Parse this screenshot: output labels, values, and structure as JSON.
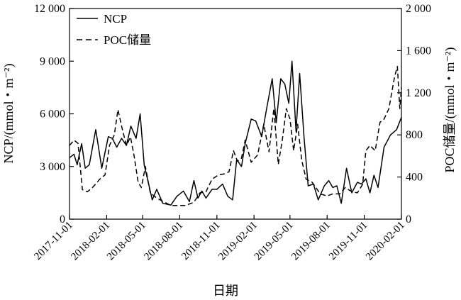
{
  "chart_data": {
    "type": "line",
    "xlabel": "日期",
    "ylabel_left": "NCP/(mmol・m⁻²)",
    "ylabel_right": "POC储量/(mmol・m⁻²)",
    "ylim_left": [
      0,
      12000
    ],
    "ylim_right": [
      0,
      2000
    ],
    "yticks_left": [
      "0",
      "3 000",
      "6 000",
      "9 000",
      "12 000"
    ],
    "yticks_right": [
      "0",
      "400",
      "800",
      "1 200",
      "1 600",
      "2 000"
    ],
    "xticks": [
      "2017-11-01",
      "2018-02-01",
      "2018-05-01",
      "2018-08-01",
      "2018-11-01",
      "2019-02-01",
      "2019-05-01",
      "2019-08-01",
      "2019-11-01",
      "2020-02-01"
    ],
    "grid": false,
    "legend_position": "top-left",
    "series": [
      {
        "name": "NCP",
        "axis": "left",
        "style": "solid",
        "x": [
          "2017-11-01",
          "2017-11-12",
          "2017-11-20",
          "2017-12-01",
          "2017-12-10",
          "2017-12-20",
          "2018-01-05",
          "2018-01-20",
          "2018-02-05",
          "2018-02-15",
          "2018-02-26",
          "2018-03-10",
          "2018-03-22",
          "2018-04-02",
          "2018-04-15",
          "2018-04-25",
          "2018-05-05",
          "2018-05-15",
          "2018-05-25",
          "2018-06-05",
          "2018-06-20",
          "2018-07-10",
          "2018-07-25",
          "2018-08-10",
          "2018-08-25",
          "2018-09-05",
          "2018-09-15",
          "2018-09-25",
          "2018-10-05",
          "2018-10-20",
          "2018-11-01",
          "2018-11-15",
          "2018-11-28",
          "2018-12-10",
          "2018-12-20",
          "2019-01-01",
          "2019-01-10",
          "2019-01-25",
          "2019-02-05",
          "2019-02-20",
          "2019-03-05",
          "2019-03-18",
          "2019-03-28",
          "2019-04-08",
          "2019-04-18",
          "2019-04-28",
          "2019-05-06",
          "2019-05-16",
          "2019-05-25",
          "2019-06-05",
          "2019-06-15",
          "2019-06-28",
          "2019-07-10",
          "2019-07-25",
          "2019-08-05",
          "2019-08-15",
          "2019-08-25",
          "2019-09-05",
          "2019-09-18",
          "2019-10-01",
          "2019-10-15",
          "2019-10-25",
          "2019-11-05",
          "2019-11-15",
          "2019-11-25",
          "2019-12-05",
          "2019-12-20",
          "2020-01-05",
          "2020-01-20",
          "2020-02-01"
        ],
        "values": [
          3500,
          3700,
          3100,
          4300,
          2900,
          3100,
          5100,
          2900,
          4700,
          4600,
          4100,
          4600,
          4200,
          5300,
          4600,
          6000,
          3100,
          2100,
          1100,
          1700,
          900,
          800,
          1300,
          1600,
          1000,
          2200,
          1200,
          1600,
          1200,
          1700,
          1700,
          2000,
          1300,
          1100,
          3400,
          3000,
          4300,
          5700,
          5600,
          4700,
          6400,
          8000,
          5500,
          8000,
          7700,
          6600,
          9000,
          5000,
          8300,
          4600,
          1900,
          2000,
          1100,
          1900,
          2200,
          1800,
          1900,
          900,
          2900,
          1500,
          2100,
          2000,
          2300,
          1500,
          2500,
          1800,
          4100,
          4800,
          5100,
          5800
        ]
      },
      {
        "name": "POC储量",
        "axis": "right",
        "style": "dashed",
        "x": [
          "2017-11-01",
          "2017-11-12",
          "2017-11-22",
          "2017-12-03",
          "2017-12-15",
          "2017-12-28",
          "2018-01-15",
          "2018-01-28",
          "2018-02-08",
          "2018-02-20",
          "2018-03-01",
          "2018-03-12",
          "2018-03-22",
          "2018-04-01",
          "2018-04-10",
          "2018-04-20",
          "2018-04-28",
          "2018-05-08",
          "2018-05-20",
          "2018-06-05",
          "2018-06-20",
          "2018-07-10",
          "2018-07-25",
          "2018-08-15",
          "2018-09-05",
          "2018-09-20",
          "2018-10-05",
          "2018-10-20",
          "2018-11-05",
          "2018-11-20",
          "2018-12-01",
          "2018-12-12",
          "2018-12-22",
          "2019-01-01",
          "2019-01-10",
          "2019-01-25",
          "2019-02-10",
          "2019-02-25",
          "2019-03-10",
          "2019-03-22",
          "2019-04-02",
          "2019-04-12",
          "2019-04-22",
          "2019-05-01",
          "2019-05-10",
          "2019-05-20",
          "2019-05-30",
          "2019-06-10",
          "2019-06-25",
          "2019-07-15",
          "2019-08-01",
          "2019-08-15",
          "2019-09-01",
          "2019-09-15",
          "2019-10-01",
          "2019-10-15",
          "2019-10-28",
          "2019-11-05",
          "2019-11-15",
          "2019-11-28",
          "2019-12-10",
          "2019-12-20",
          "2020-01-01",
          "2020-01-08",
          "2020-01-15",
          "2020-01-22",
          "2020-01-28",
          "2020-02-01"
        ],
        "values": [
          700,
          750,
          720,
          280,
          260,
          300,
          380,
          420,
          700,
          800,
          1040,
          850,
          700,
          780,
          600,
          350,
          300,
          500,
          250,
          200,
          170,
          130,
          130,
          130,
          160,
          250,
          260,
          380,
          420,
          430,
          450,
          650,
          550,
          580,
          750,
          540,
          610,
          900,
          640,
          1050,
          520,
          750,
          1050,
          950,
          650,
          900,
          560,
          380,
          350,
          240,
          220,
          240,
          240,
          300,
          260,
          250,
          330,
          650,
          700,
          650,
          920,
          950,
          1050,
          1200,
          1350,
          1450,
          1050,
          1250
        ]
      }
    ]
  }
}
